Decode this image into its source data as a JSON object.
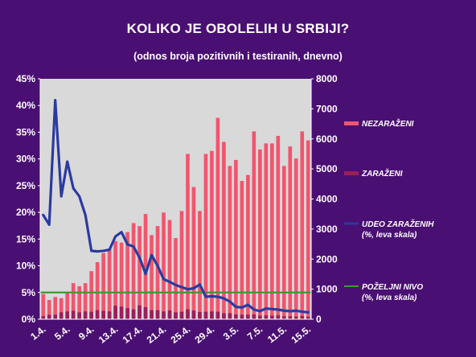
{
  "chart_data": {
    "type": "bar",
    "title": "KOLIKO JE OBOLELIH U SRBIJI?",
    "subtitle": "(odnos broja pozitivnih i testiranih, dnevno)",
    "y_left": {
      "ylim": [
        0,
        45
      ],
      "ticks": [
        "0%",
        "5%",
        "10%",
        "15%",
        "20%",
        "25%",
        "30%",
        "35%",
        "40%",
        "45%"
      ]
    },
    "y_right": {
      "ylim": [
        0,
        8000
      ],
      "ticks": [
        "0",
        "1000",
        "2000",
        "3000",
        "4000",
        "5000",
        "6000",
        "7000",
        "8000"
      ]
    },
    "x_tick_labels": [
      "1.4.",
      "5.4.",
      "9.4.",
      "13.4.",
      "17.4.",
      "21.4.",
      "25.4.",
      "29.4.",
      "3.5.",
      "7.5.",
      "11.5.",
      "15.5."
    ],
    "grid": false,
    "legend_position": "right",
    "colors": {
      "nezarazeni": "#f0566e",
      "zarazeni": "#9a1f5c",
      "udeo": "#2b3aa0",
      "pozeljni": "#3c9a2e",
      "plot_bg": "#d9d9d9"
    },
    "series": [
      {
        "name": "NEZARAŽENI",
        "axis": "right",
        "values": [
          840,
          640,
          740,
          700,
          900,
          1200,
          1100,
          1200,
          1600,
          1900,
          2200,
          2350,
          2600,
          2550,
          2900,
          3200,
          3100,
          3500,
          2800,
          3100,
          3550,
          3300,
          2700,
          3600,
          5500,
          4400,
          3600,
          5500,
          5600,
          6700,
          5900,
          5100,
          5300,
          4600,
          4800,
          6250,
          5650,
          5850,
          5850,
          6100,
          5100,
          5750,
          5350,
          6250,
          5950
        ]
      },
      {
        "name": "ZARAŽENI",
        "axis": "right",
        "values": [
          100,
          150,
          150,
          230,
          260,
          280,
          230,
          260,
          250,
          300,
          280,
          260,
          450,
          420,
          370,
          330,
          460,
          400,
          300,
          300,
          260,
          290,
          230,
          250,
          330,
          290,
          240,
          250,
          260,
          250,
          200,
          200,
          160,
          150,
          150,
          160,
          120,
          130,
          120,
          130,
          100,
          100,
          90,
          110,
          80
        ]
      },
      {
        "name": "UDEO ZARAŽENIH",
        "axis_note": "(%, leva skala)",
        "type": "line",
        "axis": "left",
        "values": [
          19.5,
          17.7,
          41.0,
          23.0,
          29.5,
          24.5,
          23.0,
          19.5,
          12.8,
          12.7,
          12.8,
          13.0,
          15.5,
          16.3,
          14.0,
          13.6,
          11.5,
          8.5,
          12.0,
          10.0,
          7.5,
          7.0,
          6.4,
          6.0,
          5.6,
          5.8,
          6.5,
          4.2,
          4.3,
          4.2,
          3.9,
          3.3,
          2.3,
          2.2,
          2.7,
          1.8,
          1.5,
          2.0,
          1.9,
          1.8,
          1.6,
          1.5,
          1.6,
          1.4,
          1.3
        ]
      },
      {
        "name": "POŽELJNI NIVO",
        "axis_note": "(%, leva skala)",
        "type": "line",
        "axis": "left",
        "value": 5
      }
    ]
  }
}
